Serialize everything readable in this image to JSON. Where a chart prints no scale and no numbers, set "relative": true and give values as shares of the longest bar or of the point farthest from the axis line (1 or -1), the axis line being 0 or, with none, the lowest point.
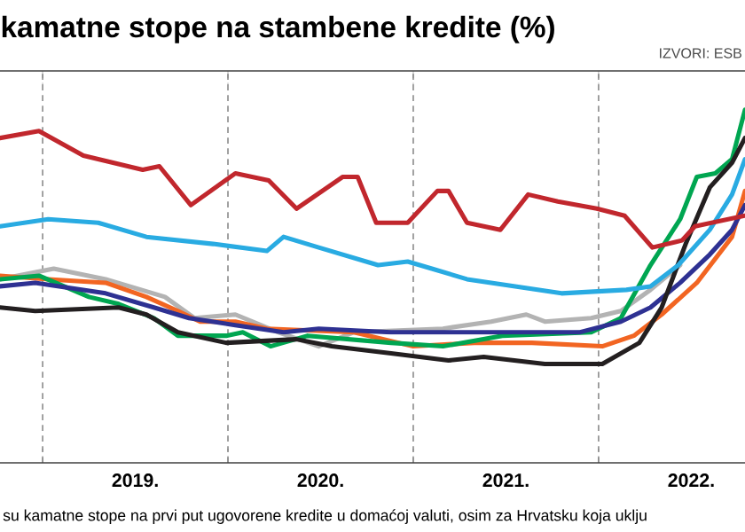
{
  "chart_data": {
    "type": "line",
    "title": "kamatne stope na stambene kredite (%)",
    "relative": true,
    "grid": true,
    "annotations": [
      "IZVORI: ESB",
      "su kamatne stope na prvi put ugovorene kredite u domaćoj valuti, osim za Hrvatsku koja uklju"
    ],
    "xlim": [
      2018.77,
      2022.79
    ],
    "xticks": [
      {
        "value": 2019,
        "label": null
      },
      {
        "value": 2019.5,
        "label": "2019."
      },
      {
        "value": 2020,
        "label": null
      },
      {
        "value": 2020.5,
        "label": "2020."
      },
      {
        "value": 2021,
        "label": null
      },
      {
        "value": 2021.5,
        "label": "2021."
      },
      {
        "value": 2022,
        "label": null
      },
      {
        "value": 2022.5,
        "label": "2022."
      }
    ],
    "series": [
      {
        "color": "#b3b3b3",
        "x": [
          2018.77,
          2019.06,
          2019.34,
          2019.66,
          2019.82,
          2020.04,
          2020.27,
          2020.49,
          2020.68,
          2021.16,
          2021.42,
          2021.61,
          2021.71,
          2021.96,
          2022.12,
          2022.28,
          2022.44
        ],
        "values": [
          0.52,
          0.55,
          0.52,
          0.47,
          0.41,
          0.42,
          0.37,
          0.33,
          0.37,
          0.38,
          0.4,
          0.42,
          0.4,
          0.41,
          0.43,
          0.49,
          0.56
        ]
      },
      {
        "color": "#f26522",
        "x": [
          2018.77,
          2019.03,
          2019.34,
          2019.56,
          2019.73,
          2019.85,
          2020.04,
          2020.21,
          2020.68,
          2021.0,
          2021.33,
          2021.64,
          2022.02,
          2022.19,
          2022.34,
          2022.53,
          2022.72,
          2022.79
        ],
        "values": [
          0.53,
          0.52,
          0.51,
          0.47,
          0.43,
          0.4,
          0.4,
          0.38,
          0.37,
          0.33,
          0.34,
          0.34,
          0.33,
          0.36,
          0.42,
          0.51,
          0.64,
          0.77
        ]
      },
      {
        "color": "#00a651",
        "x": [
          2018.77,
          2018.98,
          2019.25,
          2019.41,
          2019.6,
          2019.73,
          2019.99,
          2020.08,
          2020.23,
          2020.43,
          2020.88,
          2021.16,
          2021.48,
          2021.96,
          2022.12,
          2022.28,
          2022.44,
          2022.53,
          2022.63,
          2022.72,
          2022.79
        ],
        "values": [
          0.52,
          0.53,
          0.47,
          0.45,
          0.41,
          0.36,
          0.36,
          0.37,
          0.33,
          0.36,
          0.34,
          0.33,
          0.36,
          0.37,
          0.41,
          0.56,
          0.69,
          0.81,
          0.82,
          0.86,
          1.0
        ]
      },
      {
        "color": "#2e3192",
        "x": [
          2018.77,
          2018.96,
          2019.34,
          2019.6,
          2019.79,
          2020.04,
          2020.3,
          2020.49,
          2020.88,
          2021.16,
          2021.48,
          2021.9,
          2022.12,
          2022.28,
          2022.44,
          2022.6,
          2022.72,
          2022.79
        ],
        "values": [
          0.5,
          0.51,
          0.48,
          0.44,
          0.41,
          0.39,
          0.37,
          0.38,
          0.37,
          0.37,
          0.37,
          0.37,
          0.4,
          0.44,
          0.51,
          0.59,
          0.66,
          0.73
        ]
      },
      {
        "color": "#231f20",
        "x": [
          2018.77,
          2018.96,
          2019.41,
          2019.56,
          2019.73,
          2019.99,
          2020.37,
          2020.56,
          2020.88,
          2021.19,
          2021.38,
          2021.71,
          2022.02,
          2022.22,
          2022.34,
          2022.47,
          2022.6,
          2022.72,
          2022.79
        ],
        "values": [
          0.44,
          0.43,
          0.44,
          0.42,
          0.37,
          0.34,
          0.35,
          0.33,
          0.31,
          0.29,
          0.3,
          0.28,
          0.28,
          0.34,
          0.44,
          0.62,
          0.78,
          0.85,
          0.92
        ]
      },
      {
        "color": "#29abe2",
        "x": [
          2018.77,
          2019.03,
          2019.3,
          2019.56,
          2019.92,
          2020.21,
          2020.3,
          2020.49,
          2020.81,
          2020.97,
          2021.1,
          2021.29,
          2021.55,
          2021.8,
          2022.15,
          2022.28,
          2022.43,
          2022.6,
          2022.72,
          2022.79
        ],
        "values": [
          0.67,
          0.69,
          0.68,
          0.64,
          0.62,
          0.6,
          0.64,
          0.61,
          0.56,
          0.57,
          0.55,
          0.52,
          0.5,
          0.48,
          0.49,
          0.5,
          0.56,
          0.66,
          0.76,
          0.86
        ]
      },
      {
        "color": "#c1272d",
        "x": [
          2018.77,
          2018.98,
          2019.22,
          2019.54,
          2019.63,
          2019.8,
          2020.04,
          2020.22,
          2020.37,
          2020.62,
          2020.7,
          2020.8,
          2020.97,
          2021.13,
          2021.19,
          2021.29,
          2021.47,
          2021.62,
          2021.78,
          2021.99,
          2022.14,
          2022.29,
          2022.45,
          2022.52,
          2022.79
        ],
        "values": [
          0.92,
          0.94,
          0.87,
          0.83,
          0.84,
          0.73,
          0.82,
          0.8,
          0.72,
          0.81,
          0.81,
          0.68,
          0.68,
          0.77,
          0.77,
          0.68,
          0.66,
          0.76,
          0.74,
          0.72,
          0.7,
          0.61,
          0.63,
          0.67,
          0.7
        ]
      }
    ]
  }
}
